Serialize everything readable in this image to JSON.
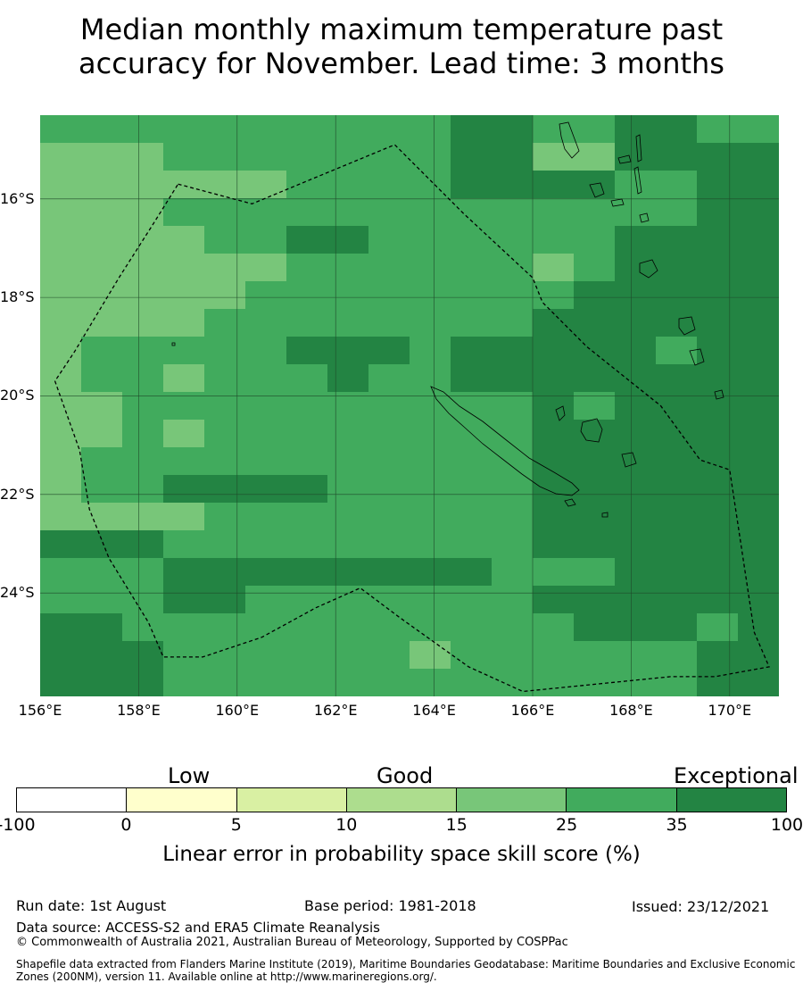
{
  "title_line1": "Median monthly maximum temperature past",
  "title_line2": "accuracy for November. Lead time: 3 months",
  "map": {
    "lon_range": [
      156,
      171
    ],
    "lat_range": [
      -14.3,
      -26.1
    ],
    "lat_ticks": [
      {
        "value": -16,
        "label": "16°S"
      },
      {
        "value": -18,
        "label": "18°S"
      },
      {
        "value": -20,
        "label": "20°S"
      },
      {
        "value": -22,
        "label": "22°S"
      },
      {
        "value": -24,
        "label": "24°S"
      }
    ],
    "lon_ticks": [
      {
        "value": 156,
        "label": "156°E"
      },
      {
        "value": 158,
        "label": "158°E"
      },
      {
        "value": 160,
        "label": "160°E"
      },
      {
        "value": 162,
        "label": "162°E"
      },
      {
        "value": 164,
        "label": "164°E"
      },
      {
        "value": 166,
        "label": "166°E"
      },
      {
        "value": 168,
        "label": "168°E"
      },
      {
        "value": 170,
        "label": "170°E"
      }
    ],
    "grid_columns": 18,
    "grid_rows": 21,
    "skill_class_grid": [
      "555555555566556655",
      "444555555566446666",
      "444444555566665566",
      "444555555555555566",
      "444455665555556666",
      "444444555555456666",
      "444445555555566666",
      "444455555555666666",
      "455555666566666566",
      "455455565566666666",
      "445555555555656666",
      "445455555555666666",
      "455555555555666666",
      "455666655555666666",
      "444455555555666666",
      "666555555555666666",
      "555666666665556666",
      "555665555555666666",
      "665555555555566656",
      "666555555455555566",
      "666555555555555566"
    ],
    "colors": {
      "c0": "#ffffff",
      "c1": "#ffffcc",
      "c2": "#d9f0a3",
      "c3": "#addd8e",
      "c4": "#78c679",
      "c5": "#41ab5d",
      "c6": "#238443"
    },
    "boundary_path_lonlat": [
      [
        158.8,
        -15.7
      ],
      [
        160.3,
        -16.1
      ],
      [
        163.2,
        -14.9
      ],
      [
        164.6,
        -16.3
      ],
      [
        166.0,
        -17.6
      ],
      [
        166.2,
        -18.1
      ],
      [
        167.1,
        -19.0
      ],
      [
        168.6,
        -20.2
      ],
      [
        169.4,
        -21.3
      ],
      [
        170.0,
        -21.5
      ],
      [
        170.5,
        -24.8
      ],
      [
        170.8,
        -25.5
      ],
      [
        169.7,
        -25.7
      ],
      [
        168.8,
        -25.7
      ],
      [
        165.8,
        -26.0
      ],
      [
        164.7,
        -25.5
      ],
      [
        163.3,
        -24.5
      ],
      [
        162.5,
        -23.9
      ],
      [
        161.6,
        -24.3
      ],
      [
        160.5,
        -24.9
      ],
      [
        159.3,
        -25.3
      ],
      [
        158.5,
        -25.3
      ],
      [
        158.2,
        -24.6
      ],
      [
        157.4,
        -23.3
      ],
      [
        157.0,
        -22.3
      ],
      [
        156.8,
        -21.1
      ],
      [
        156.3,
        -19.7
      ],
      [
        156.7,
        -19.1
      ],
      [
        157.6,
        -17.6
      ],
      [
        158.3,
        -16.5
      ],
      [
        158.8,
        -15.7
      ]
    ]
  },
  "legend": {
    "category_labels": [
      "Low",
      "Good",
      "Exceptional"
    ],
    "segment_colors": [
      "#ffffff",
      "#ffffcc",
      "#d9f0a3",
      "#addd8e",
      "#78c679",
      "#41ab5d",
      "#238443"
    ],
    "ticks": [
      "-100",
      "0",
      "5",
      "10",
      "15",
      "25",
      "35",
      "100"
    ],
    "label": "Linear error in probability space skill score (%)"
  },
  "footer": {
    "run_date": "Run date: 1st August",
    "base_period": "Base period: 1981-2018",
    "issued": "Issued: 23/12/2021",
    "data_source": "Data source: ACCESS-S2 and ERA5 Climate Reanalysis",
    "copyright": "© Commonwealth of Australia 2021, Australian Bureau of Meteorology, Supported by COSPPac",
    "shapefile_note": "Shapefile data extracted from Flanders Marine Institute (2019), Maritime Boundaries Geodatabase: Maritime Boundaries and Exclusive Economic Zones (200NM), version 11. Available online at http://www.marineregions.org/."
  }
}
